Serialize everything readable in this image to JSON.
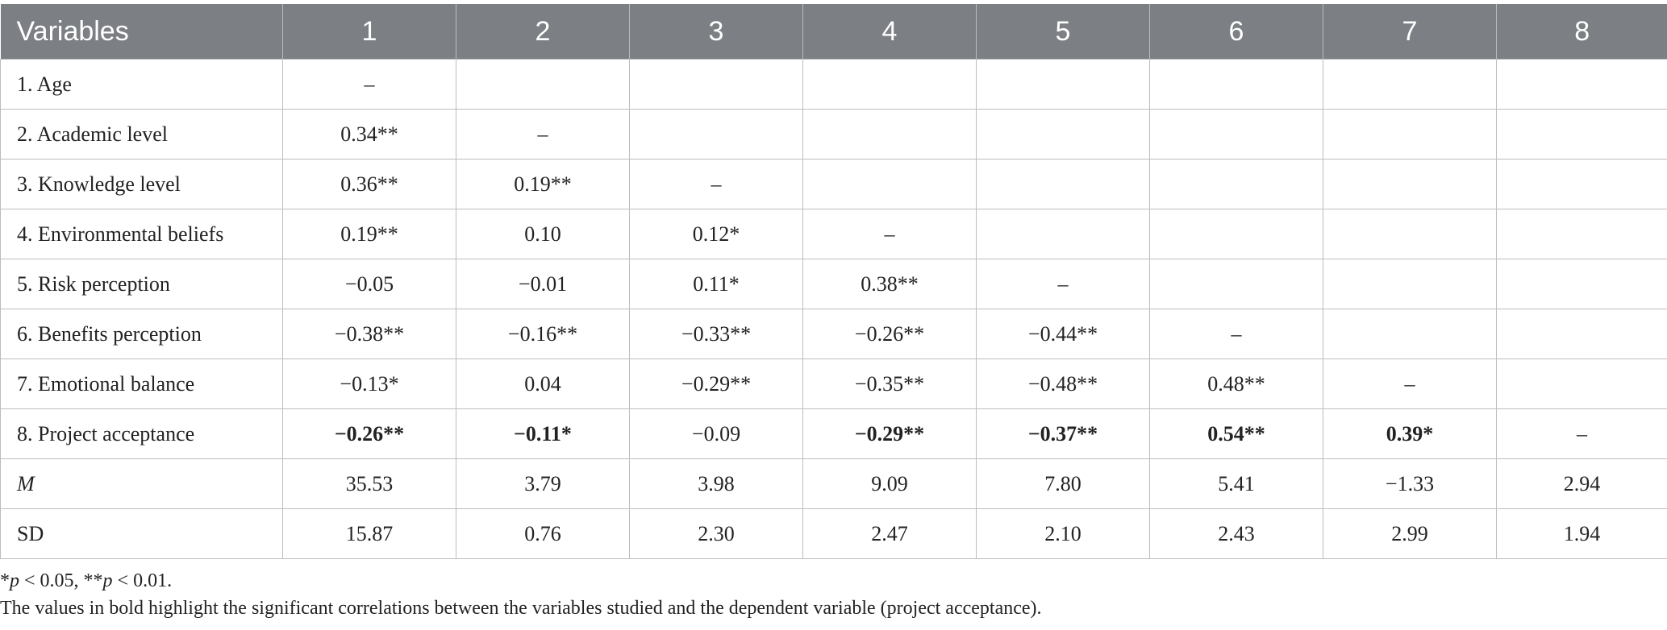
{
  "header": [
    "Variables",
    "1",
    "2",
    "3",
    "4",
    "5",
    "6",
    "7",
    "8"
  ],
  "rows": [
    {
      "label": "1. Age",
      "values": [
        "–",
        "",
        "",
        "",
        "",
        "",
        "",
        ""
      ]
    },
    {
      "label": "2. Academic level",
      "values": [
        "0.34**",
        "–",
        "",
        "",
        "",
        "",
        "",
        ""
      ]
    },
    {
      "label": "3. Knowledge level",
      "values": [
        "0.36**",
        "0.19**",
        "–",
        "",
        "",
        "",
        "",
        ""
      ]
    },
    {
      "label": "4. Environmental beliefs",
      "values": [
        "0.19**",
        "0.10",
        "0.12*",
        "–",
        "",
        "",
        "",
        ""
      ]
    },
    {
      "label": "5. Risk perception",
      "values": [
        "−0.05",
        "−0.01",
        "0.11*",
        "0.38**",
        "–",
        "",
        "",
        ""
      ]
    },
    {
      "label": "6. Benefits perception",
      "values": [
        "−0.38**",
        "−0.16**",
        "−0.33**",
        "−0.26**",
        "−0.44**",
        "–",
        "",
        ""
      ]
    },
    {
      "label": "7. Emotional balance",
      "values": [
        "−0.13*",
        "0.04",
        "−0.29**",
        "−0.35**",
        "−0.48**",
        "0.48**",
        "–",
        ""
      ]
    },
    {
      "label": "8. Project acceptance",
      "values": [
        "−0.26**",
        "−0.11*",
        "−0.09",
        "−0.29**",
        "−0.37**",
        "0.54**",
        "0.39*",
        "–"
      ]
    },
    {
      "label": "M",
      "values": [
        "35.53",
        "3.79",
        "3.98",
        "9.09",
        "7.80",
        "5.41",
        "−1.33",
        "2.94"
      ]
    },
    {
      "label": "SD",
      "values": [
        "15.87",
        "0.76",
        "2.30",
        "2.47",
        "2.10",
        "2.43",
        "2.99",
        "1.94"
      ]
    }
  ],
  "footnote1": {
    "star1": "*",
    "p1": "p",
    "t1": " < 0.05, **",
    "p2": "p",
    "t2": " < 0.01."
  },
  "footnote2": "The values in bold highlight the significant correlations between the variables studied and the dependent variable (project acceptance)."
}
